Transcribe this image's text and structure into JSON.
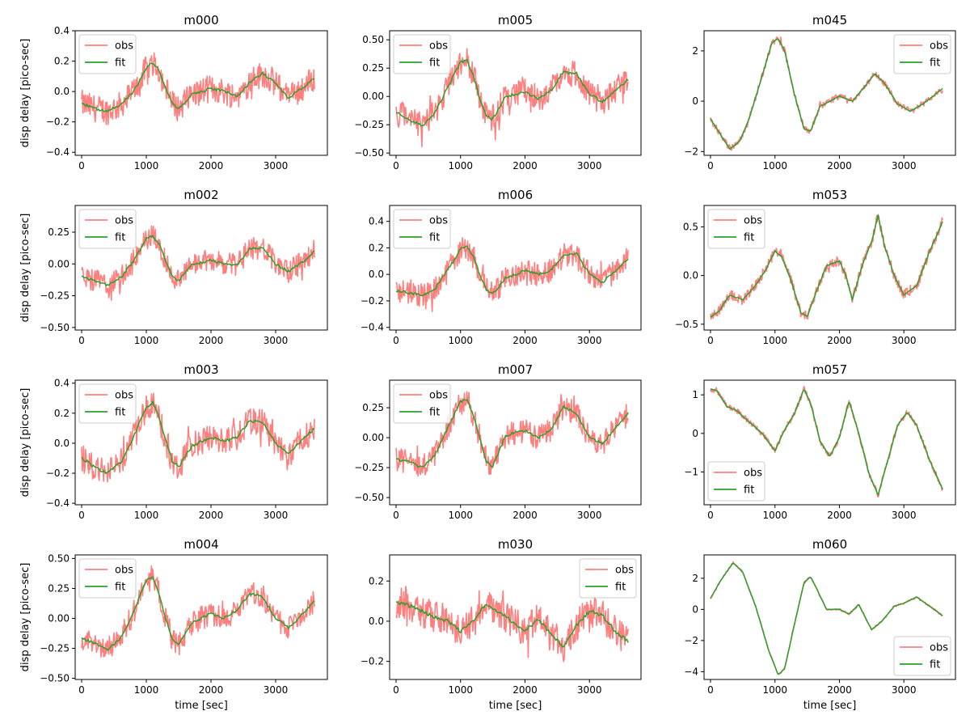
{
  "figure": {
    "ylabel": "disp delay [pico-sec]",
    "xlabel": "time [sec]",
    "colors": {
      "obs": "#ff7f7f",
      "fit": "#2ca02c",
      "frame": "#000000"
    }
  },
  "chart_data": [
    {
      "type": "line",
      "title": "m000",
      "xlim": [
        -100,
        3800
      ],
      "ylim": [
        -0.42,
        0.4
      ],
      "xticks": [
        0,
        1000,
        2000,
        3000
      ],
      "xtick_labels": [
        "0",
        "1000",
        "2000",
        "3000"
      ],
      "yticks": [
        -0.4,
        -0.2,
        0.0,
        0.2,
        0.4
      ],
      "ytick_labels": [
        "−0.4",
        "−0.2",
        "0.0",
        "0.2",
        "0.4"
      ],
      "ylabel": "disp delay [pico-sec]",
      "xlabel": "",
      "legend": "upper left",
      "noise": 0.09,
      "x": [
        0,
        200,
        400,
        600,
        800,
        1000,
        1100,
        1200,
        1300,
        1400,
        1500,
        1700,
        2000,
        2200,
        2400,
        2600,
        2800,
        3000,
        3200,
        3400,
        3600
      ],
      "series": [
        {
          "name": "obs",
          "color": "#ff7f7f"
        },
        {
          "name": "fit",
          "color": "#2ca02c",
          "y": [
            -0.08,
            -0.11,
            -0.13,
            -0.09,
            0.0,
            0.15,
            0.19,
            0.14,
            0.02,
            -0.08,
            -0.11,
            -0.02,
            0.02,
            0.0,
            -0.03,
            0.06,
            0.12,
            0.05,
            -0.04,
            0.02,
            0.09
          ]
        }
      ]
    },
    {
      "type": "line",
      "title": "m005",
      "xlim": [
        -100,
        3800
      ],
      "ylim": [
        -0.52,
        0.58
      ],
      "xticks": [
        0,
        1000,
        2000,
        3000
      ],
      "xtick_labels": [
        "0",
        "1000",
        "2000",
        "3000"
      ],
      "yticks": [
        -0.5,
        -0.25,
        0.0,
        0.25,
        0.5
      ],
      "ytick_labels": [
        "−0.50",
        "−0.25",
        "0.00",
        "0.25",
        "0.50"
      ],
      "ylabel": "",
      "xlabel": "",
      "legend": "upper left",
      "noise": 0.12,
      "x": [
        0,
        200,
        400,
        600,
        800,
        1000,
        1100,
        1200,
        1300,
        1400,
        1500,
        1700,
        2000,
        2200,
        2400,
        2600,
        2800,
        3000,
        3200,
        3400,
        3600
      ],
      "series": [
        {
          "name": "obs",
          "color": "#ff7f7f"
        },
        {
          "name": "fit",
          "color": "#2ca02c",
          "y": [
            -0.14,
            -0.2,
            -0.26,
            -0.15,
            0.08,
            0.3,
            0.32,
            0.18,
            -0.02,
            -0.18,
            -0.2,
            0.0,
            0.04,
            -0.02,
            0.05,
            0.22,
            0.2,
            0.02,
            -0.05,
            0.05,
            0.15
          ]
        }
      ]
    },
    {
      "type": "line",
      "title": "m045",
      "xlim": [
        -100,
        3800
      ],
      "ylim": [
        -2.15,
        2.8
      ],
      "xticks": [
        0,
        1000,
        2000,
        3000
      ],
      "xtick_labels": [
        "0",
        "1000",
        "2000",
        "3000"
      ],
      "yticks": [
        -2,
        0,
        2
      ],
      "ytick_labels": [
        "−2",
        "0",
        "2"
      ],
      "ylabel": "",
      "xlabel": "",
      "legend": "upper right",
      "noise": 0.12,
      "x": [
        0,
        150,
        300,
        450,
        600,
        800,
        950,
        1050,
        1150,
        1300,
        1450,
        1550,
        1700,
        2000,
        2200,
        2400,
        2550,
        2700,
        2900,
        3100,
        3300,
        3600
      ],
      "series": [
        {
          "name": "obs",
          "color": "#ff7f7f"
        },
        {
          "name": "fit",
          "color": "#2ca02c",
          "y": [
            -0.7,
            -1.3,
            -1.9,
            -1.6,
            -0.7,
            1.0,
            2.3,
            2.5,
            2.0,
            0.3,
            -1.1,
            -1.2,
            -0.2,
            0.2,
            0.0,
            0.6,
            1.1,
            0.7,
            -0.1,
            -0.4,
            -0.1,
            0.5
          ]
        }
      ]
    },
    {
      "type": "line",
      "title": "m002",
      "xlim": [
        -100,
        3800
      ],
      "ylim": [
        -0.52,
        0.46
      ],
      "xticks": [
        0,
        1000,
        2000,
        3000
      ],
      "xtick_labels": [
        "0",
        "1000",
        "2000",
        "3000"
      ],
      "yticks": [
        -0.5,
        -0.25,
        0.0,
        0.25
      ],
      "ytick_labels": [
        "−0.50",
        "−0.25",
        "0.00",
        "0.25"
      ],
      "ylabel": "disp delay [pico-sec]",
      "xlabel": "",
      "legend": "upper left",
      "noise": 0.09,
      "x": [
        0,
        200,
        400,
        600,
        800,
        1000,
        1100,
        1200,
        1300,
        1400,
        1500,
        1700,
        2000,
        2200,
        2400,
        2600,
        2800,
        3000,
        3200,
        3400,
        3600
      ],
      "series": [
        {
          "name": "obs",
          "color": "#ff7f7f"
        },
        {
          "name": "fit",
          "color": "#2ca02c",
          "y": [
            -0.1,
            -0.13,
            -0.17,
            -0.11,
            0.02,
            0.2,
            0.22,
            0.15,
            0.02,
            -0.09,
            -0.13,
            -0.01,
            0.03,
            0.0,
            -0.01,
            0.12,
            0.13,
            0.0,
            -0.06,
            0.01,
            0.1
          ]
        }
      ]
    },
    {
      "type": "line",
      "title": "m006",
      "xlim": [
        -100,
        3800
      ],
      "ylim": [
        -0.42,
        0.52
      ],
      "xticks": [
        0,
        1000,
        2000,
        3000
      ],
      "xtick_labels": [
        "0",
        "1000",
        "2000",
        "3000"
      ],
      "yticks": [
        -0.4,
        -0.2,
        0.0,
        0.2,
        0.4
      ],
      "ytick_labels": [
        "−0.4",
        "−0.2",
        "0.0",
        "0.2",
        "0.4"
      ],
      "ylabel": "",
      "xlabel": "",
      "legend": "upper left",
      "noise": 0.09,
      "x": [
        0,
        200,
        400,
        600,
        800,
        1000,
        1100,
        1200,
        1300,
        1400,
        1500,
        1700,
        2000,
        2200,
        2400,
        2600,
        2800,
        3000,
        3200,
        3400,
        3600
      ],
      "series": [
        {
          "name": "obs",
          "color": "#ff7f7f"
        },
        {
          "name": "fit",
          "color": "#2ca02c",
          "y": [
            -0.12,
            -0.14,
            -0.16,
            -0.11,
            0.03,
            0.19,
            0.21,
            0.13,
            0.0,
            -0.12,
            -0.15,
            -0.03,
            0.03,
            0.0,
            0.03,
            0.14,
            0.16,
            0.0,
            -0.06,
            0.02,
            0.12
          ]
        }
      ]
    },
    {
      "type": "line",
      "title": "m053",
      "xlim": [
        -100,
        3800
      ],
      "ylim": [
        -0.56,
        0.72
      ],
      "xticks": [
        0,
        1000,
        2000,
        3000
      ],
      "xtick_labels": [
        "0",
        "1000",
        "2000",
        "3000"
      ],
      "yticks": [
        -0.5,
        0.0,
        0.5
      ],
      "ytick_labels": [
        "−0.5",
        "0.0",
        "0.5"
      ],
      "ylabel": "",
      "xlabel": "",
      "legend": "upper left",
      "noise": 0.05,
      "x": [
        0,
        150,
        300,
        500,
        700,
        850,
        1000,
        1100,
        1250,
        1400,
        1500,
        1650,
        1800,
        2000,
        2100,
        2200,
        2350,
        2500,
        2600,
        2700,
        2850,
        3000,
        3200,
        3400,
        3600
      ],
      "series": [
        {
          "name": "obs",
          "color": "#ff7f7f"
        },
        {
          "name": "fit",
          "color": "#2ca02c",
          "y": [
            -0.43,
            -0.35,
            -0.2,
            -0.25,
            -0.1,
            0.05,
            0.25,
            0.2,
            -0.05,
            -0.38,
            -0.42,
            -0.15,
            0.1,
            0.15,
            0.0,
            -0.25,
            0.1,
            0.35,
            0.62,
            0.3,
            0.0,
            -0.2,
            -0.1,
            0.25,
            0.55
          ]
        }
      ]
    },
    {
      "type": "line",
      "title": "m003",
      "xlim": [
        -100,
        3800
      ],
      "ylim": [
        -0.41,
        0.42
      ],
      "xticks": [
        0,
        1000,
        2000,
        3000
      ],
      "xtick_labels": [
        "0",
        "1000",
        "2000",
        "3000"
      ],
      "yticks": [
        -0.4,
        -0.2,
        0.0,
        0.2,
        0.4
      ],
      "ytick_labels": [
        "−0.4",
        "−0.2",
        "0.0",
        "0.2",
        "0.4"
      ],
      "ylabel": "disp delay [pico-sec]",
      "xlabel": "",
      "legend": "upper left",
      "noise": 0.09,
      "x": [
        0,
        200,
        400,
        600,
        800,
        1000,
        1100,
        1200,
        1300,
        1400,
        1500,
        1700,
        2000,
        2200,
        2400,
        2600,
        2800,
        3000,
        3200,
        3400,
        3600
      ],
      "series": [
        {
          "name": "obs",
          "color": "#ff7f7f"
        },
        {
          "name": "fit",
          "color": "#2ca02c",
          "y": [
            -0.1,
            -0.16,
            -0.2,
            -0.13,
            0.04,
            0.24,
            0.27,
            0.17,
            0.02,
            -0.12,
            -0.16,
            -0.02,
            0.04,
            0.01,
            0.04,
            0.15,
            0.14,
            0.0,
            -0.07,
            0.02,
            0.1
          ]
        }
      ]
    },
    {
      "type": "line",
      "title": "m007",
      "xlim": [
        -100,
        3800
      ],
      "ylim": [
        -0.56,
        0.48
      ],
      "xticks": [
        0,
        1000,
        2000,
        3000
      ],
      "xtick_labels": [
        "0",
        "1000",
        "2000",
        "3000"
      ],
      "yticks": [
        -0.5,
        -0.25,
        0.0,
        0.25
      ],
      "ytick_labels": [
        "−0.50",
        "−0.25",
        "0.00",
        "0.25"
      ],
      "ylabel": "",
      "xlabel": "",
      "legend": "upper left",
      "noise": 0.1,
      "x": [
        0,
        200,
        400,
        600,
        800,
        1000,
        1100,
        1200,
        1300,
        1400,
        1500,
        1700,
        2000,
        2200,
        2400,
        2600,
        2800,
        3000,
        3200,
        3400,
        3600
      ],
      "series": [
        {
          "name": "obs",
          "color": "#ff7f7f"
        },
        {
          "name": "fit",
          "color": "#2ca02c",
          "y": [
            -0.18,
            -0.2,
            -0.25,
            -0.15,
            0.08,
            0.3,
            0.32,
            0.18,
            0.0,
            -0.2,
            -0.24,
            0.02,
            0.06,
            0.0,
            0.06,
            0.26,
            0.2,
            0.0,
            -0.05,
            0.08,
            0.2
          ]
        }
      ]
    },
    {
      "type": "line",
      "title": "m057",
      "xlim": [
        -100,
        3800
      ],
      "ylim": [
        -1.85,
        1.38
      ],
      "xticks": [
        0,
        1000,
        2000,
        3000
      ],
      "xtick_labels": [
        "0",
        "1000",
        "2000",
        "3000"
      ],
      "yticks": [
        -1,
        0,
        1
      ],
      "ytick_labels": [
        "−1",
        "0",
        "1"
      ],
      "ylabel": "",
      "xlabel": "",
      "legend": "lower left",
      "noise": 0.07,
      "x": [
        0,
        100,
        250,
        400,
        600,
        800,
        1000,
        1150,
        1300,
        1450,
        1550,
        1700,
        1850,
        2000,
        2150,
        2300,
        2450,
        2600,
        2750,
        2900,
        3050,
        3200,
        3400,
        3600
      ],
      "series": [
        {
          "name": "obs",
          "color": "#ff7f7f"
        },
        {
          "name": "fit",
          "color": "#2ca02c",
          "y": [
            1.15,
            1.1,
            0.7,
            0.6,
            0.3,
            0.0,
            -0.45,
            0.1,
            0.5,
            1.15,
            0.8,
            -0.2,
            -0.6,
            -0.1,
            0.85,
            0.0,
            -1.0,
            -1.6,
            -0.7,
            0.2,
            0.55,
            0.2,
            -0.7,
            -1.45
          ]
        }
      ]
    },
    {
      "type": "line",
      "title": "m004",
      "xlim": [
        -100,
        3800
      ],
      "ylim": [
        -0.51,
        0.53
      ],
      "xticks": [
        0,
        1000,
        2000,
        3000
      ],
      "xtick_labels": [
        "0",
        "1000",
        "2000",
        "3000"
      ],
      "yticks": [
        -0.5,
        -0.25,
        0.0,
        0.25,
        0.5
      ],
      "ytick_labels": [
        "−0.50",
        "−0.25",
        "0.00",
        "0.25",
        "0.50"
      ],
      "ylabel": "disp delay [pico-sec]",
      "xlabel": "time [sec]",
      "legend": "upper left",
      "noise": 0.1,
      "x": [
        0,
        200,
        400,
        600,
        800,
        1000,
        1100,
        1200,
        1300,
        1400,
        1500,
        1700,
        2000,
        2200,
        2400,
        2600,
        2800,
        3000,
        3200,
        3400,
        3600
      ],
      "series": [
        {
          "name": "obs",
          "color": "#ff7f7f"
        },
        {
          "name": "fit",
          "color": "#2ca02c",
          "y": [
            -0.16,
            -0.21,
            -0.26,
            -0.17,
            0.05,
            0.32,
            0.35,
            0.2,
            0.0,
            -0.17,
            -0.22,
            -0.04,
            0.04,
            0.0,
            0.07,
            0.21,
            0.18,
            0.0,
            -0.08,
            0.03,
            0.14
          ]
        }
      ]
    },
    {
      "type": "line",
      "title": "m030",
      "xlim": [
        -100,
        3800
      ],
      "ylim": [
        -0.29,
        0.33
      ],
      "xticks": [
        0,
        1000,
        2000,
        3000
      ],
      "xtick_labels": [
        "0",
        "1000",
        "2000",
        "3000"
      ],
      "yticks": [
        -0.2,
        0.0,
        0.2
      ],
      "ytick_labels": [
        "−0.2",
        "0.0",
        "0.2"
      ],
      "ylabel": "",
      "xlabel": "time [sec]",
      "legend": "upper right",
      "noise": 0.08,
      "x": [
        0,
        200,
        400,
        600,
        800,
        1000,
        1200,
        1400,
        1600,
        1800,
        2000,
        2200,
        2400,
        2600,
        2800,
        3000,
        3200,
        3400,
        3600
      ],
      "series": [
        {
          "name": "obs",
          "color": "#ff7f7f"
        },
        {
          "name": "fit",
          "color": "#2ca02c",
          "y": [
            0.09,
            0.08,
            0.05,
            0.02,
            0.0,
            -0.05,
            0.0,
            0.09,
            0.04,
            0.0,
            -0.05,
            0.01,
            -0.06,
            -0.13,
            -0.02,
            0.05,
            0.03,
            -0.05,
            -0.1
          ]
        }
      ]
    },
    {
      "type": "line",
      "title": "m060",
      "xlim": [
        -100,
        3800
      ],
      "ylim": [
        -4.5,
        3.5
      ],
      "xticks": [
        0,
        1000,
        2000,
        3000
      ],
      "xtick_labels": [
        "0",
        "1000",
        "2000",
        "3000"
      ],
      "yticks": [
        -4,
        -2,
        0,
        2
      ],
      "ytick_labels": [
        "−4",
        "−2",
        "0",
        "2"
      ],
      "ylabel": "",
      "xlabel": "time [sec]",
      "legend": "lower right",
      "noise": 0.06,
      "x": [
        0,
        150,
        350,
        500,
        700,
        900,
        1050,
        1150,
        1300,
        1450,
        1550,
        1650,
        1800,
        2000,
        2150,
        2300,
        2500,
        2650,
        2850,
        3000,
        3200,
        3400,
        3600
      ],
      "series": [
        {
          "name": "obs",
          "color": "#ff7f7f"
        },
        {
          "name": "fit",
          "color": "#2ca02c",
          "y": [
            0.7,
            1.8,
            3.0,
            2.4,
            0.2,
            -2.6,
            -4.2,
            -3.8,
            -1.0,
            1.7,
            2.1,
            1.3,
            0.0,
            0.0,
            -0.3,
            0.3,
            -1.3,
            -0.8,
            0.2,
            0.4,
            0.8,
            0.2,
            -0.4
          ]
        }
      ]
    }
  ]
}
